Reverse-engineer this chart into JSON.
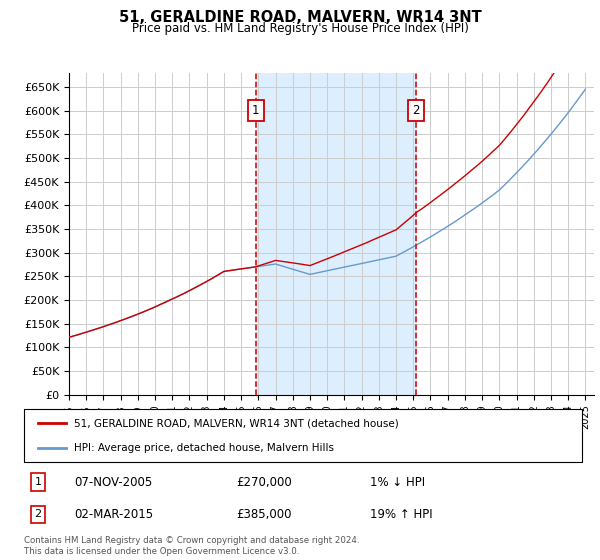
{
  "title": "51, GERALDINE ROAD, MALVERN, WR14 3NT",
  "subtitle": "Price paid vs. HM Land Registry's House Price Index (HPI)",
  "ylim": [
    0,
    680000
  ],
  "yticks": [
    0,
    50000,
    100000,
    150000,
    200000,
    250000,
    300000,
    350000,
    400000,
    450000,
    500000,
    550000,
    600000,
    650000
  ],
  "ytick_labels": [
    "£0",
    "£50K",
    "£100K",
    "£150K",
    "£200K",
    "£250K",
    "£300K",
    "£350K",
    "£400K",
    "£450K",
    "£500K",
    "£550K",
    "£600K",
    "£650K"
  ],
  "xlim_start": 1995.0,
  "xlim_end": 2025.5,
  "sale1_x": 2005.85,
  "sale1_y": 270000,
  "sale2_x": 2015.17,
  "sale2_y": 385000,
  "sale1_date": "07-NOV-2005",
  "sale1_price": "£270,000",
  "sale1_hpi": "1% ↓ HPI",
  "sale2_date": "02-MAR-2015",
  "sale2_price": "£385,000",
  "sale2_hpi": "19% ↑ HPI",
  "line_color_red": "#cc0000",
  "line_color_blue": "#6699cc",
  "shaded_color": "#ddeeff",
  "grid_color": "#cccccc",
  "background_color": "#ffffff",
  "legend_line1": "51, GERALDINE ROAD, MALVERN, WR14 3NT (detached house)",
  "legend_line2": "HPI: Average price, detached house, Malvern Hills",
  "footer": "Contains HM Land Registry data © Crown copyright and database right 2024.\nThis data is licensed under the Open Government Licence v3.0."
}
